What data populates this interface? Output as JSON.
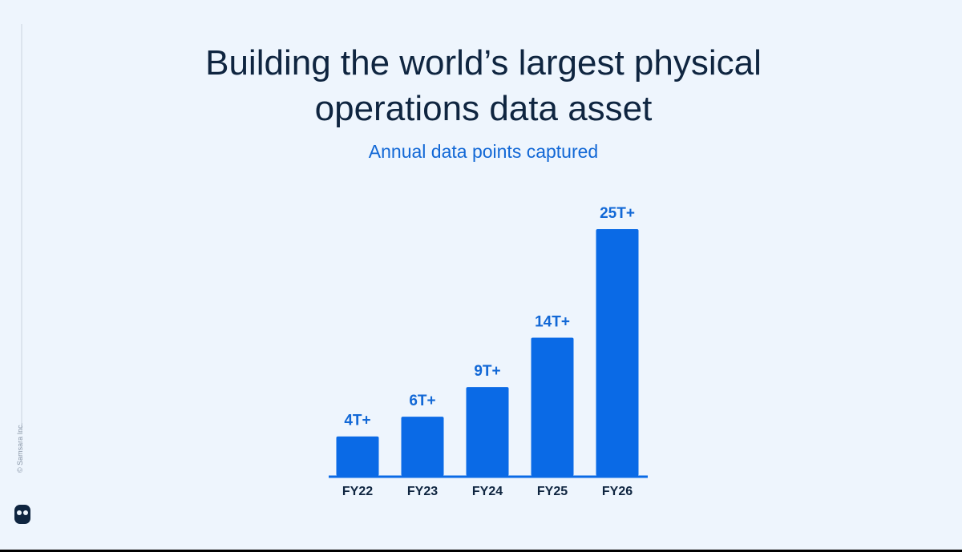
{
  "chart_data": {
    "type": "bar",
    "title": "Building the world’s largest physical operations data asset",
    "subtitle": "Annual data points captured",
    "categories": [
      "FY22",
      "FY23",
      "FY24",
      "FY25",
      "FY26"
    ],
    "values": [
      4,
      6,
      9,
      14,
      25
    ],
    "value_labels": [
      "4T+",
      "6T+",
      "9T+",
      "14T+",
      "25T+"
    ],
    "color": "#0a6ae6"
  },
  "footer": {
    "copyright": "© Samsara Inc."
  }
}
